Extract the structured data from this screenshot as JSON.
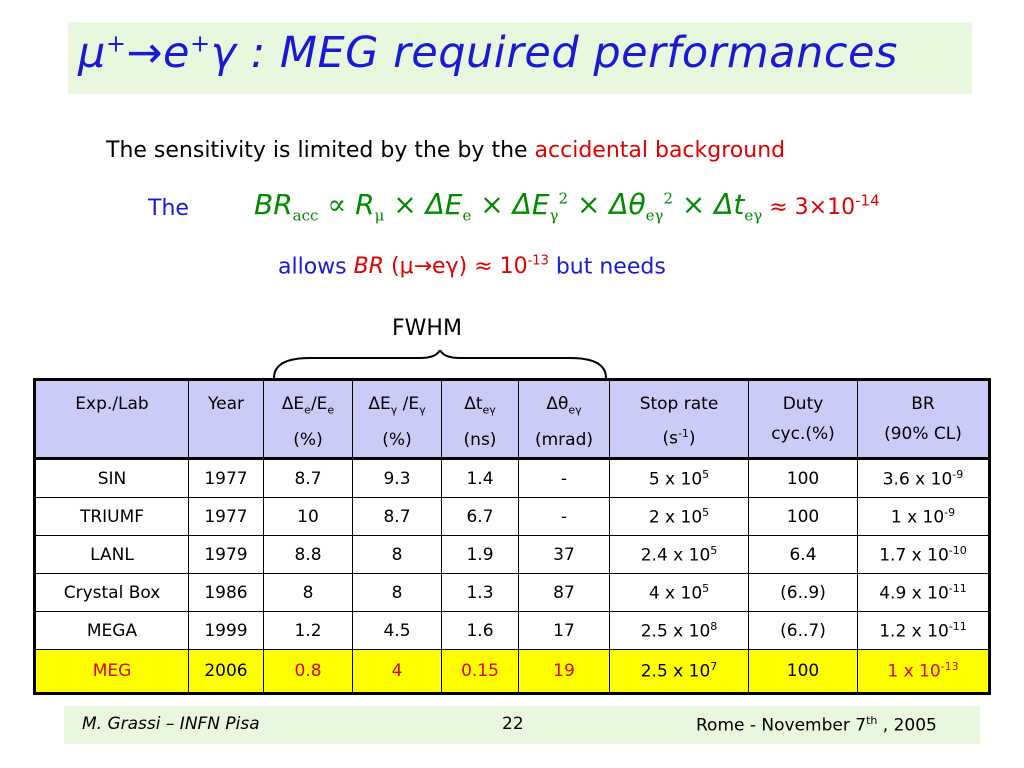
{
  "slide": {
    "title_mu": "μ",
    "title_plus1": "+",
    "title_arrow": "→",
    "title_e": "e",
    "title_plus2": "+",
    "title_gamma": "γ",
    "title_text": " : MEG required performances",
    "sensitivity_text": "The sensitivity is limited by the by the ",
    "sensitivity_red": "accidental background",
    "the_label": "The",
    "formula": {
      "br": "BR",
      "br_sub": "acc",
      "prop": " ∝ ",
      "r": "R",
      "r_sub": "μ",
      "x1": " × ",
      "de": "ΔE",
      "de_sub": "e",
      "x2": " × ",
      "dg": "ΔE",
      "dg_sub": "γ",
      "dg_sup": "2",
      "x3": " × ",
      "dth": "Δθ",
      "dth_sub": "eγ",
      "dth_sup": "2",
      "x4": " × ",
      "dt": "Δt",
      "dt_sub": "eγ",
      "approx": " ≈ ",
      "value": "3×10",
      "value_exp": "-14"
    },
    "allows": {
      "word": "allows  ",
      "br": "BR",
      "paren_open": " (",
      "mu": "μ",
      "arrow": "→",
      "eg": "eγ",
      "paren_close": ")",
      "approx": " ≈ 10",
      "exp": "-13",
      "rest": "  but needs"
    },
    "fwhm": "FWHM"
  },
  "table": {
    "headers": [
      {
        "line1": "Exp./Lab",
        "line2": ""
      },
      {
        "line1": "Year",
        "line2": ""
      },
      {
        "line1": "ΔE",
        "sub": "e",
        "mid": "/E",
        "sub2": "e",
        "line2": "(%)"
      },
      {
        "line1": "ΔE",
        "sub": "γ",
        "mid": " /E",
        "sub2": "γ",
        "line2": "(%)"
      },
      {
        "line1": "Δt",
        "sub": "eγ",
        "line2": "(ns)"
      },
      {
        "line1": "Δθ",
        "sub": "eγ",
        "line2": "(mrad)"
      },
      {
        "line1": "Stop rate",
        "line2_pre": "(s",
        "line2_sup": "-1",
        "line2_post": ")"
      },
      {
        "line1": "Duty",
        "line2": "cyc.(%)"
      },
      {
        "line1": "BR",
        "line2": "(90% CL)"
      }
    ],
    "rows": [
      {
        "lab": "SIN",
        "year": "1977",
        "de": "8.7",
        "dg": "9.3",
        "dt": "1.4",
        "dth": "-",
        "stop_base": "5 x 10",
        "stop_exp": "5",
        "duty": "100",
        "br_base": "3.6 x 10",
        "br_exp": "-9"
      },
      {
        "lab": "TRIUMF",
        "year": "1977",
        "de": "10",
        "dg": "8.7",
        "dt": "6.7",
        "dth": "-",
        "stop_base": "2 x 10",
        "stop_exp": "5",
        "duty": "100",
        "br_base": "1 x 10",
        "br_exp": "-9"
      },
      {
        "lab": "LANL",
        "year": "1979",
        "de": "8.8",
        "dg": "8",
        "dt": "1.9",
        "dth": "37",
        "stop_base": "2.4 x 10",
        "stop_exp": "5",
        "duty": "6.4",
        "br_base": "1.7 x 10",
        "br_exp": "-10"
      },
      {
        "lab": "Crystal Box",
        "year": "1986",
        "de": "8",
        "dg": "8",
        "dt": "1.3",
        "dth": "87",
        "stop_base": "4 x 10",
        "stop_exp": "5",
        "duty": "(6..9)",
        "br_base": "4.9 x 10",
        "br_exp": "-11"
      },
      {
        "lab": "MEGA",
        "year": "1999",
        "de": "1.2",
        "dg": "4.5",
        "dt": "1.6",
        "dth": "17",
        "stop_base": "2.5 x 10",
        "stop_exp": "8",
        "duty": "(6..7)",
        "br_base": "1.2 x 10",
        "br_exp": "-11"
      }
    ],
    "meg": {
      "lab": "MEG",
      "year": "2006",
      "de": "0.8",
      "dg": "4",
      "dt": "0.15",
      "dth": "19",
      "stop_base": "2.5 x 10",
      "stop_exp": "7",
      "duty": "100",
      "br_base": "1 x 10",
      "br_exp": "-13"
    }
  },
  "footer": {
    "author": "M. Grassi – INFN Pisa",
    "page": "22",
    "place_pre": "Rome -  November 7",
    "place_sup": "th",
    "place_post": " , 2005"
  },
  "colors": {
    "title_bg": "#e8f8df",
    "blue": "#1a1ad6",
    "red": "#e00000",
    "green": "#008a00",
    "header_bg": "#cbcbf7",
    "highlight": "#ffff00"
  }
}
